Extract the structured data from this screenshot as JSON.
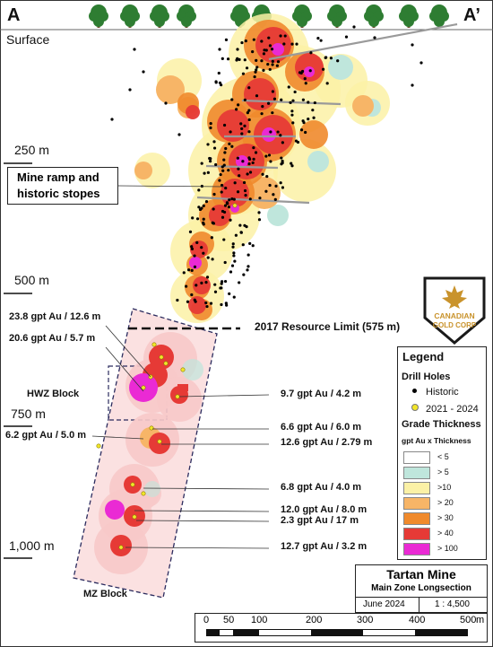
{
  "map": {
    "corner_left": "A",
    "corner_right": "A’",
    "surface_label": "Surface",
    "depth_labels": [
      "250 m",
      "500 m",
      "750 m",
      "1,000 m"
    ],
    "ramp_callout": [
      "Mine ramp and",
      "historic stopes"
    ],
    "resource_limit_label": "2017 Resource Limit (575 m)",
    "hwz_label": "HWZ Block",
    "mz_label": "MZ Block",
    "intercepts": [
      "23.8 gpt Au / 12.6 m",
      "20.6 gpt Au / 5.7 m",
      "9.7 gpt Au / 4.2 m",
      "6.6 gpt Au / 6.0 m",
      "6.2 gpt Au / 5.0 m",
      "12.6 gpt Au / 2.79 m",
      "6.8 gpt Au / 4.0 m",
      "12.0 gpt Au / 8.0 m",
      "2.3 gpt Au / 17 m",
      "12.7 gpt Au / 3.2 m"
    ]
  },
  "logo": {
    "line1": "CANADIAN",
    "line2": "GOLD CORP"
  },
  "legend": {
    "title": "Legend",
    "drill_holes_title": "Drill Holes",
    "drill_holes": [
      {
        "label": "Historic",
        "color": "#000000"
      },
      {
        "label": "2021 - 2024",
        "color": "#f2e62a"
      }
    ],
    "grade_title": "Grade Thickness",
    "grade_subtitle": "gpt Au x Thickness",
    "grade_classes": [
      {
        "label": "< 5",
        "color": "#ffffff"
      },
      {
        "label": "> 5",
        "color": "#bfe6dc"
      },
      {
        "label": ">10",
        "color": "#fbf1a6"
      },
      {
        "label": "> 20",
        "color": "#f7b567"
      },
      {
        "label": "> 30",
        "color": "#f08a2c"
      },
      {
        "label": "> 40",
        "color": "#e63a36"
      },
      {
        "label": "> 100",
        "color": "#ea2ad4"
      }
    ]
  },
  "title_block": {
    "title": "Tartan Mine",
    "subtitle": "Main Zone Longsection",
    "date": "June 2024",
    "scale": "1 : 4,500"
  },
  "scale_bar": {
    "ticks": [
      "0",
      "50",
      "100",
      "200",
      "300",
      "400",
      "500"
    ],
    "unit": "m"
  },
  "colors": {
    "pink_halo": "#f7c9c9",
    "red": "#e63a36",
    "magenta": "#ea2ad4",
    "orange": "#f08a2c",
    "light_orange": "#f7b567",
    "yellow": "#fbf1a6",
    "teal": "#bfe6dc",
    "tree_green": "#2e7d32"
  }
}
